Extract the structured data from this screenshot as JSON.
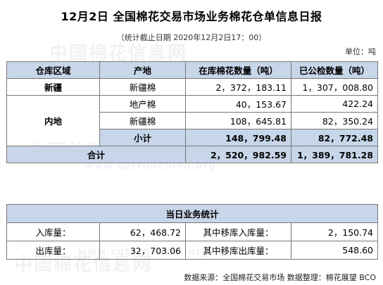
{
  "title": "12月2日  全国棉花交易市场业务棉花仓单信息日报",
  "subtitle": "（统计截止日期 2020年12月2日17：00）",
  "unit": "单位：吨",
  "table": {
    "headers": [
      "仓库区域",
      "产地",
      "在库棉花数量（吨）",
      "已公检数量（吨）"
    ],
    "xinjiang": {
      "region": "新疆",
      "origin": "新疆棉",
      "stock": "2，372，183.11",
      "inspected": "1，307，008.80"
    },
    "inland": {
      "region": "内地",
      "rows": [
        {
          "origin": "地产棉",
          "stock": "40，153.67",
          "inspected": "422.24"
        },
        {
          "origin": "新疆棉",
          "stock": "108，645.81",
          "inspected": "82，350.24"
        }
      ],
      "subtotal_label": "小计",
      "subtotal_stock": "148，799.48",
      "subtotal_inspected": "82，772.48"
    },
    "total": {
      "label": "合计",
      "stock": "2，520，982.59",
      "inspected": "1，389，781.28"
    }
  },
  "daily": {
    "title": "当日业务统计",
    "rows": [
      {
        "label1": "入库量：",
        "value1": "62，468.72",
        "label2": "其中移库入库量：",
        "value2": "2，150.74"
      },
      {
        "label1": "出库量：",
        "value1": "32，703.06",
        "label2": "其中移库出库量：",
        "value2": "548.60"
      }
    ]
  },
  "footer": "数据来源：全国棉花交易市场  数据整理：棉花展望 BCO",
  "watermark": {
    "text": "中国棉花信息网",
    "url": "www.cottonchina.org"
  },
  "colors": {
    "header_bg": "#c7d6e9",
    "border": "#777777"
  }
}
